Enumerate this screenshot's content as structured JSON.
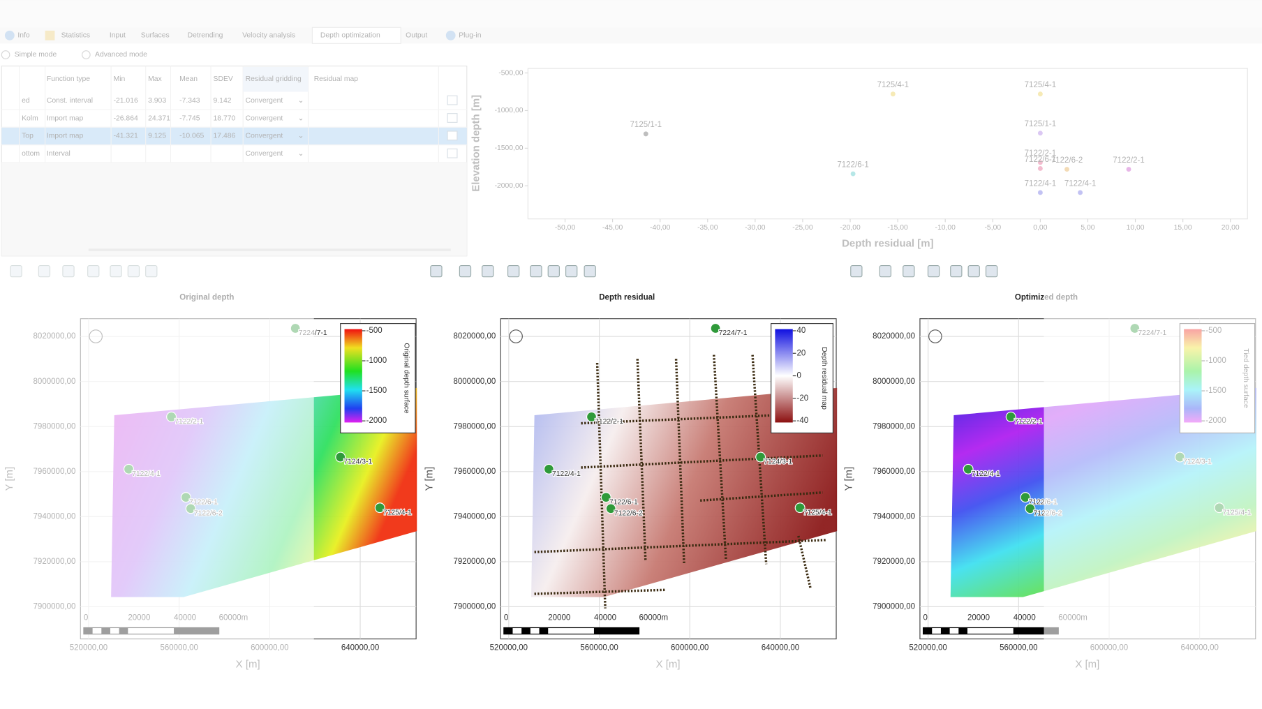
{
  "tabs": [
    "Info",
    "Statistics",
    "Input",
    "Surfaces",
    "Detrending",
    "Velocity analysis",
    "Depth optimization",
    "Output",
    "Plug-in"
  ],
  "active_tab": 6,
  "modes": [
    "Simple mode",
    "Advanced mode"
  ],
  "table": {
    "columns": [
      "Function type",
      "Min",
      "Max",
      "Mean",
      "SDEV",
      "Residual gridding",
      "Residual map"
    ],
    "selected_row": 2,
    "rows": [
      {
        "name": "ed",
        "function_type": "Const. interval",
        "min": "-21.016",
        "max": "3.903",
        "mean": "-7.343",
        "sdev": "9.142",
        "gridding": "Convergent"
      },
      {
        "name": "Kolm",
        "function_type": "Import map",
        "min": "-26.864",
        "max": "24.371",
        "mean": "-7.745",
        "sdev": "18.770",
        "gridding": "Convergent"
      },
      {
        "name": "Top",
        "function_type": "Import map",
        "min": "-41.321",
        "max": "9.125",
        "mean": "-10.065",
        "sdev": "17.486",
        "gridding": "Convergent"
      },
      {
        "name": "ottom",
        "function_type": "Interval",
        "gridding": "Convergent"
      }
    ]
  },
  "crossplot": {
    "x_label": "Depth residual [m]",
    "y_label": "Elevation depth [m]",
    "xlim": [
      -53.9,
      21.8
    ],
    "ylim": [
      -2440,
      -440
    ],
    "xticks": [
      {
        "value": -50,
        "label": "-50,00"
      },
      {
        "value": -45,
        "label": "-45,00"
      },
      {
        "value": -40,
        "label": "-40,00"
      },
      {
        "value": -35,
        "label": "-35,00"
      },
      {
        "value": -30,
        "label": "-30,00"
      },
      {
        "value": -25,
        "label": "-25,00"
      },
      {
        "value": -20,
        "label": "-20,00"
      },
      {
        "value": -15,
        "label": "-15,00"
      },
      {
        "value": -10,
        "label": "-10,00"
      },
      {
        "value": -5,
        "label": "-5,00"
      },
      {
        "value": 0,
        "label": "0,00"
      },
      {
        "value": 5,
        "label": "5,00"
      },
      {
        "value": 10,
        "label": "10,00"
      },
      {
        "value": 15,
        "label": "15,00"
      },
      {
        "value": 20,
        "label": "20,00"
      }
    ],
    "yticks": [
      {
        "value": -500,
        "label": "-500,00"
      },
      {
        "value": -1000,
        "label": "-1000,00"
      },
      {
        "value": -1500,
        "label": "-1500,00"
      },
      {
        "value": -2000,
        "label": "-2000,00"
      }
    ],
    "wells": [
      {
        "label": "7125/1-1",
        "x": -41.5,
        "y": -1310
      },
      {
        "label": "7125/4-1",
        "x": -15.5,
        "y": -780
      },
      {
        "label": "7125/4-1",
        "x": 0,
        "y": -780
      },
      {
        "label": "7125/1-1",
        "x": 0,
        "y": -1300
      },
      {
        "label": "7122/6-1",
        "x": -19.7,
        "y": -1840
      },
      {
        "label": "7122/2-1",
        "x": 0,
        "y": -1690
      },
      {
        "label": "7122/6-1",
        "x": 0,
        "y": -1770
      },
      {
        "label": "7122/6-2",
        "x": 2.8,
        "y": -1780
      },
      {
        "label": "7122/2-1",
        "x": 9.3,
        "y": -1780
      },
      {
        "label": "7122/4-1",
        "x": 0,
        "y": -2090
      },
      {
        "label": "7122/4-1",
        "x": 4.2,
        "y": -2090
      }
    ]
  },
  "map_axes": {
    "x_label": "X [m]",
    "y_label": "Y [m]",
    "xlim": [
      516400,
      664700
    ],
    "ylim": [
      7885700,
      8027900
    ],
    "xticks": [
      {
        "value": 520000,
        "label": "520000,00"
      },
      {
        "value": 560000,
        "label": "560000,00"
      },
      {
        "value": 600000,
        "label": "600000,00"
      },
      {
        "value": 640000,
        "label": "640000,00"
      }
    ],
    "yticks": [
      {
        "value": 8020000,
        "label": "8020000,00"
      },
      {
        "value": 8000000,
        "label": "8000000,00"
      },
      {
        "value": 7980000,
        "label": "7980000,00"
      },
      {
        "value": 7960000,
        "label": "7960000,00"
      },
      {
        "value": 7940000,
        "label": "7940000,00"
      },
      {
        "value": 7920000,
        "label": "7920000,00"
      },
      {
        "value": 7900000,
        "label": "7900000,00"
      }
    ],
    "scale_labels": [
      "0",
      "20000",
      "40000",
      "60000m"
    ]
  },
  "wells": [
    "7224/7-1",
    "7122/2-1",
    "7124/3-1",
    "7122/4-1",
    "7122/6-1",
    "7122/6-2",
    "7125/4-1"
  ],
  "maps": [
    {
      "title": "Original depth",
      "colorbar": {
        "title": "Original depth surface",
        "ticks": [
          -500,
          -1000,
          -1500,
          -2000
        ]
      }
    },
    {
      "title": "Depth residual",
      "colorbar": {
        "title": "Depth residual map",
        "ticks": [
          40,
          20,
          0,
          -20,
          -40
        ]
      }
    },
    {
      "title": "Optimized depth",
      "colorbar": {
        "title": "Tied depth surface",
        "ticks": [
          -500,
          -1000,
          -1500,
          -2000
        ]
      }
    }
  ]
}
